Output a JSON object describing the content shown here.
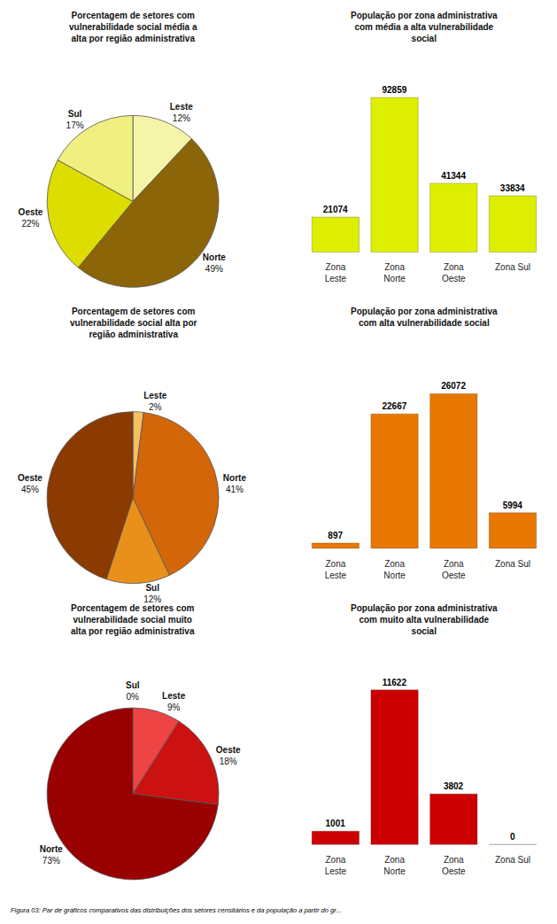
{
  "chart_data": [
    {
      "type": "pie",
      "title": "Porcentagem de setores com\nvulnerabilidade social média a\nalta por região administrativa",
      "categories": [
        "Leste",
        "Norte",
        "Oeste",
        "Sul"
      ],
      "values": [
        12,
        49,
        22,
        17
      ],
      "value_labels": [
        "12%",
        "49%",
        "22%",
        "17%"
      ],
      "colors": [
        "#F5F5AA",
        "#8B6508",
        "#DDDD00",
        "#F0F080"
      ],
      "data_labels": true
    },
    {
      "type": "bar",
      "title": "População por zona administrativa\ncom média a alta vulnerabilidade\nsocial",
      "categories": [
        "Zona\nLeste",
        "Zona\nNorte",
        "Zona\nOeste",
        "Zona Sul"
      ],
      "values": [
        21074,
        92859,
        41344,
        33834
      ],
      "color": "#DDEE00",
      "ylim": [
        -5107.245,
        111430.8
      ],
      "data_labels": true,
      "tick_labels": "x",
      "grid": false
    },
    {
      "type": "pie",
      "title": "Porcentagem de setores com\nvulnerabilidade social alta por\nregião administrativa",
      "categories": [
        "Leste",
        "Norte",
        "Sul",
        "Oeste"
      ],
      "values": [
        2,
        41,
        12,
        45
      ],
      "value_labels": [
        "2%",
        "41%",
        "12%",
        "45%"
      ],
      "colors": [
        "#F5C060",
        "#D4660A",
        "#E8901A",
        "#8B3A00"
      ],
      "data_labels": true
    },
    {
      "type": "bar",
      "title": "População por zona administrativa\ncom alta vulnerabilidade social",
      "categories": [
        "Zona\nLeste",
        "Zona\nNorte",
        "Zona\nOeste",
        "Zona Sul"
      ],
      "values": [
        897,
        22667,
        26072,
        5994
      ],
      "color": "#E87800",
      "ylim": [
        -1433.96,
        31286.4
      ],
      "data_labels": true,
      "tick_labels": "x",
      "grid": false
    },
    {
      "type": "pie",
      "title": "Porcentagem de setores com\nvulnerabilidade social muito\nalta por região administrativa",
      "categories": [
        "Sul",
        "Leste",
        "Oeste",
        "Norte"
      ],
      "values": [
        0,
        9,
        18,
        73
      ],
      "value_labels": [
        "0%",
        "9%",
        "18%",
        "73%"
      ],
      "colors": [
        "#FFAAAA",
        "#EE4444",
        "#CC1111",
        "#990000"
      ],
      "data_labels": true
    },
    {
      "type": "bar",
      "title": "População por zona administrativa\ncom muito alta vulnerabilidade\nsocial",
      "categories": [
        "Zona\nLeste",
        "Zona\nNorte",
        "Zona\nOeste",
        "Zona Sul"
      ],
      "values": [
        1001,
        11622,
        3802,
        0
      ],
      "color": "#CC0000",
      "ylim": [
        -639.21,
        13946.4
      ],
      "data_labels": true,
      "tick_labels": "x",
      "grid": false
    }
  ],
  "caption": "Figura 03: Par de gráficos comparativos das distribuições dos setores censitários e da população a partir do gr..."
}
